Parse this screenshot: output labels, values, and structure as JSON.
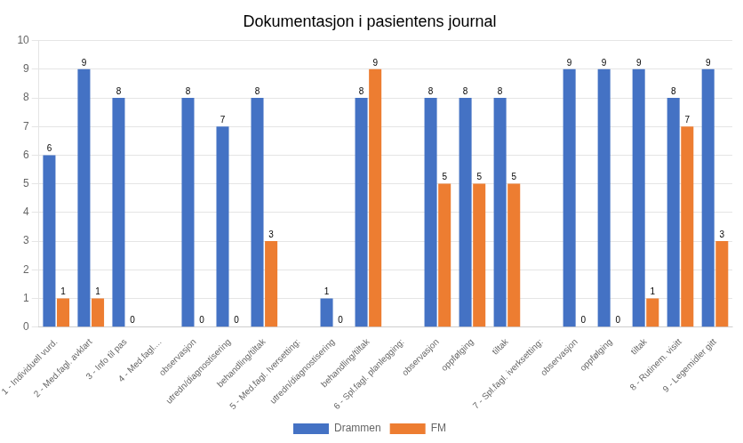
{
  "chart_data": {
    "type": "bar",
    "title": "Dokumentasjon i pasientens journal",
    "categories": [
      "1 - Individuell vurd.",
      "2 - Med.fagl. avklart",
      "3 - Info til pas",
      "4 - Med.fagl....",
      "observasjon",
      "utredn/diagnostisering",
      "behandling/tiltak",
      "5 - Med.fagl. Iversetting:",
      "utredn/diagnostisering",
      "behandling/tiltak",
      "6 - Spl.fagl. planlegging:",
      "observasjon",
      "oppfølging",
      "tiltak",
      "7 - Spl.fagl. iverksetting:",
      "observasjon",
      "oppfølging",
      "tiltak",
      "8 - Rutinem. visitt",
      "9 - Legemidler gitt"
    ],
    "series": [
      {
        "name": "Drammen",
        "color": "#4472C4",
        "values": [
          6,
          9,
          8,
          null,
          8,
          7,
          8,
          null,
          1,
          8,
          null,
          8,
          8,
          8,
          null,
          9,
          9,
          9,
          8,
          9
        ]
      },
      {
        "name": "FM",
        "color": "#ED7D31",
        "values": [
          1,
          1,
          0,
          null,
          0,
          0,
          3,
          null,
          0,
          9,
          null,
          5,
          5,
          5,
          null,
          0,
          0,
          1,
          7,
          3
        ]
      }
    ],
    "ylim": [
      0,
      10
    ],
    "yticks": [
      0,
      1,
      2,
      3,
      4,
      5,
      6,
      7,
      8,
      9,
      10
    ],
    "grid": true,
    "legend": "bottom",
    "data_labels": true
  }
}
